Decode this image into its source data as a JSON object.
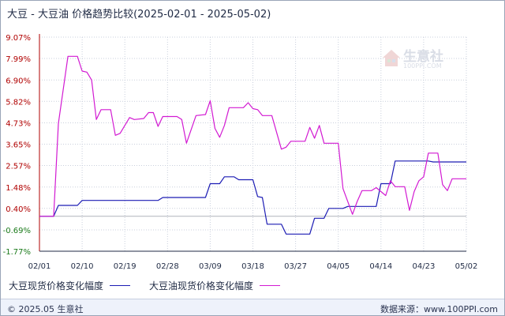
{
  "title": "大豆 - 大豆油 价格趋势比较(2025-02-01 - 2025-05-02)",
  "watermark": {
    "brand": "生意社",
    "url": "100PPI.COM",
    "icon": "house-logo-icon"
  },
  "legend": [
    {
      "label": "大豆现货价格变化幅度",
      "color": "#1c1cb4"
    },
    {
      "label": "大豆油现货价格变化幅度",
      "color": "#d21ad2"
    }
  ],
  "footer": {
    "left": "© 2025.05 生意社",
    "right": "数据来源：www.100PPI.com"
  },
  "colors": {
    "soy": "#1c1cb4",
    "oil": "#d21ad2",
    "grid": "#c9cfdc",
    "zero": "#b0b4bc",
    "axis": "#b00000",
    "tick": "#1f2a44"
  },
  "chart_data": {
    "type": "line",
    "x_ticks": [
      "02/01",
      "02/10",
      "02/19",
      "02/28",
      "03/09",
      "03/18",
      "03/27",
      "04/05",
      "04/14",
      "04/23",
      "05/02"
    ],
    "y_ticks": [
      "9.07%",
      "7.99%",
      "6.90%",
      "5.82%",
      "4.73%",
      "3.65%",
      "2.57%",
      "1.48%",
      "0.40%",
      "-0.69%",
      "-1.77%"
    ],
    "ylim": [
      -1.77,
      9.07
    ],
    "grid": true,
    "legend_position": "bottom",
    "series": [
      {
        "name": "大豆现货价格变化幅度",
        "key": "soy",
        "points": [
          [
            "02/01",
            0.0
          ],
          [
            "02/04",
            0.0
          ],
          [
            "02/05",
            0.55
          ],
          [
            "02/09",
            0.55
          ],
          [
            "02/10",
            0.8
          ],
          [
            "02/26",
            0.8
          ],
          [
            "02/27",
            0.95
          ],
          [
            "03/08",
            0.95
          ],
          [
            "03/09",
            1.65
          ],
          [
            "03/11",
            1.65
          ],
          [
            "03/12",
            2.0
          ],
          [
            "03/14",
            2.0
          ],
          [
            "03/15",
            1.85
          ],
          [
            "03/18",
            1.85
          ],
          [
            "03/19",
            1.0
          ],
          [
            "03/20",
            0.95
          ],
          [
            "03/21",
            -0.4
          ],
          [
            "03/24",
            -0.4
          ],
          [
            "03/25",
            -0.9
          ],
          [
            "03/30",
            -0.9
          ],
          [
            "03/31",
            -0.1
          ],
          [
            "04/02",
            -0.1
          ],
          [
            "04/03",
            0.4
          ],
          [
            "04/06",
            0.4
          ],
          [
            "04/07",
            0.5
          ],
          [
            "04/13",
            0.5
          ],
          [
            "04/14",
            1.65
          ],
          [
            "04/16",
            1.65
          ],
          [
            "04/17",
            2.8
          ],
          [
            "04/24",
            2.8
          ],
          [
            "04/25",
            2.75
          ],
          [
            "05/02",
            2.75
          ]
        ]
      },
      {
        "name": "大豆油现货价格变化幅度",
        "key": "oil",
        "points": [
          [
            "02/01",
            0.0
          ],
          [
            "02/04",
            0.0
          ],
          [
            "02/05",
            4.7
          ],
          [
            "02/07",
            8.1
          ],
          [
            "02/09",
            8.1
          ],
          [
            "02/10",
            7.35
          ],
          [
            "02/11",
            7.3
          ],
          [
            "02/12",
            6.9
          ],
          [
            "02/13",
            4.9
          ],
          [
            "02/14",
            5.4
          ],
          [
            "02/16",
            5.4
          ],
          [
            "02/17",
            4.1
          ],
          [
            "02/18",
            4.2
          ],
          [
            "02/20",
            5.0
          ],
          [
            "02/21",
            4.9
          ],
          [
            "02/23",
            4.95
          ],
          [
            "02/24",
            5.25
          ],
          [
            "02/25",
            5.25
          ],
          [
            "02/26",
            4.55
          ],
          [
            "02/27",
            5.05
          ],
          [
            "03/02",
            5.05
          ],
          [
            "03/03",
            4.9
          ],
          [
            "03/04",
            3.7
          ],
          [
            "03/06",
            5.1
          ],
          [
            "03/08",
            5.15
          ],
          [
            "03/09",
            5.85
          ],
          [
            "03/10",
            4.45
          ],
          [
            "03/11",
            4.0
          ],
          [
            "03/12",
            4.6
          ],
          [
            "03/13",
            5.5
          ],
          [
            "03/16",
            5.5
          ],
          [
            "03/17",
            5.75
          ],
          [
            "03/18",
            5.45
          ],
          [
            "03/19",
            5.4
          ],
          [
            "03/20",
            5.1
          ],
          [
            "03/22",
            5.1
          ],
          [
            "03/24",
            3.4
          ],
          [
            "03/25",
            3.5
          ],
          [
            "03/26",
            3.8
          ],
          [
            "03/29",
            3.8
          ],
          [
            "03/30",
            4.5
          ],
          [
            "03/31",
            3.95
          ],
          [
            "04/01",
            4.6
          ],
          [
            "04/02",
            3.7
          ],
          [
            "04/05",
            3.7
          ],
          [
            "04/06",
            1.4
          ],
          [
            "04/08",
            0.1
          ],
          [
            "04/09",
            0.75
          ],
          [
            "04/10",
            1.3
          ],
          [
            "04/12",
            1.3
          ],
          [
            "04/13",
            1.45
          ],
          [
            "04/15",
            1.05
          ],
          [
            "04/16",
            1.8
          ],
          [
            "04/17",
            1.5
          ],
          [
            "04/19",
            1.5
          ],
          [
            "04/20",
            0.3
          ],
          [
            "04/21",
            1.25
          ],
          [
            "04/22",
            1.8
          ],
          [
            "04/23",
            2.0
          ],
          [
            "04/24",
            3.2
          ],
          [
            "04/26",
            3.2
          ],
          [
            "04/27",
            1.6
          ],
          [
            "04/28",
            1.3
          ],
          [
            "04/29",
            1.9
          ],
          [
            "05/02",
            1.9
          ]
        ]
      }
    ]
  }
}
